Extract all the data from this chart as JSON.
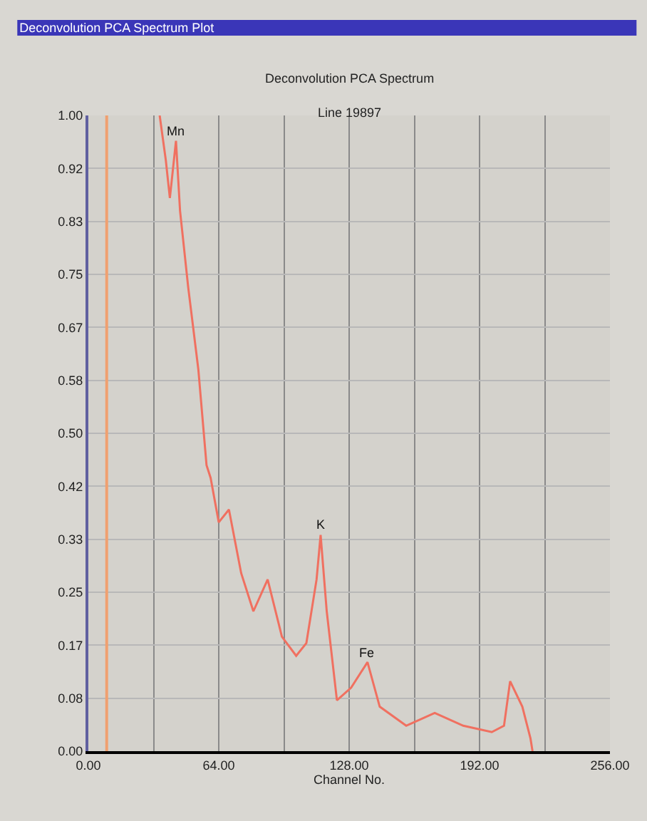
{
  "chart_data": {
    "type": "line",
    "title": "Deconvolution PCA Spectrum Plot",
    "subtitle": "Deconvolution PCA Spectrum",
    "xlabel": "Channel No.",
    "annotations": [
      "Line 19897",
      {
        "text": "Mn",
        "x": 43,
        "y": 0.96
      },
      {
        "text": "K",
        "x": 114,
        "y": 0.34
      },
      {
        "text": "Fe",
        "x": 137,
        "y": 0.14
      }
    ],
    "x": [
      35,
      38,
      40,
      43,
      45,
      49,
      54,
      58,
      60,
      64,
      69,
      75,
      81,
      88,
      95,
      102,
      107,
      112,
      114,
      117,
      122,
      129,
      137,
      143,
      156,
      170,
      184,
      198,
      204,
      207,
      213,
      217,
      218
    ],
    "series": [
      {
        "color": "#f07060",
        "values": [
          1.0,
          0.93,
          0.87,
          0.96,
          0.85,
          0.73,
          0.6,
          0.45,
          0.43,
          0.36,
          0.38,
          0.28,
          0.22,
          0.27,
          0.18,
          0.15,
          0.17,
          0.27,
          0.34,
          0.22,
          0.08,
          0.1,
          0.14,
          0.07,
          0.04,
          0.06,
          0.04,
          0.03,
          0.04,
          0.11,
          0.07,
          0.02,
          0.0
        ]
      }
    ],
    "xlim": [
      0,
      256
    ],
    "ylim": [
      0,
      1
    ],
    "xticks": [
      {
        "value": 0,
        "label": "0.00"
      },
      {
        "value": 32,
        "label": null
      },
      {
        "value": 64,
        "label": "64.00"
      },
      {
        "value": 96,
        "label": null
      },
      {
        "value": 128,
        "label": "128.00"
      },
      {
        "value": 160,
        "label": null
      },
      {
        "value": 192,
        "label": "192.00"
      },
      {
        "value": 224,
        "label": null
      },
      {
        "value": 256,
        "label": "256.00"
      }
    ],
    "yticks": [
      {
        "value": 0,
        "label": "0.00"
      },
      {
        "value": 0.0833,
        "label": "0.08"
      },
      {
        "value": 0.1667,
        "label": "0.17"
      },
      0.25,
      {
        "value": 0.3333,
        "label": "0.33"
      },
      {
        "value": 0.4167,
        "label": "0.42"
      },
      {
        "value": 0.5,
        "label": "0.50"
      },
      {
        "value": 0.5833,
        "label": "0.58"
      },
      {
        "value": 0.6667,
        "label": "0.67"
      },
      0.75,
      {
        "value": 0.8333,
        "label": "0.83"
      },
      {
        "value": 0.9167,
        "label": "0.92"
      },
      {
        "value": 1,
        "label": "1.00"
      }
    ],
    "ref_lines": [
      {
        "axis": "x",
        "value": 9,
        "label": null,
        "color": "#f0a070"
      }
    ],
    "grid": true,
    "marker": "none",
    "line_style": "solid"
  }
}
